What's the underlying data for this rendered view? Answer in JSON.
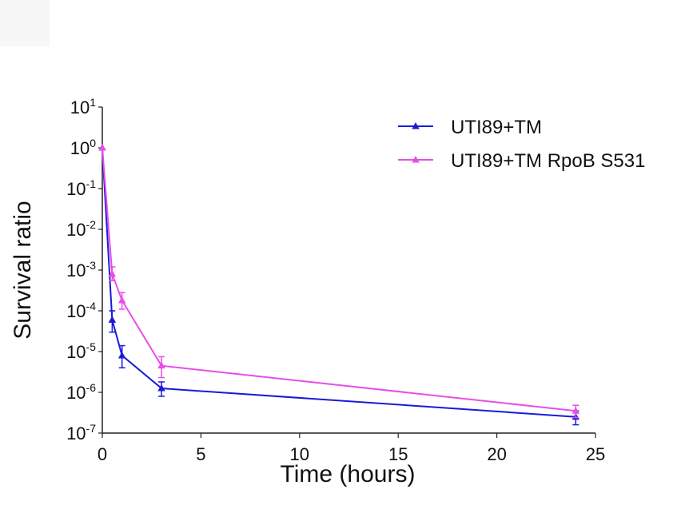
{
  "chart_data": {
    "type": "line",
    "xlabel": "Time (hours)",
    "ylabel": "Survival ratio",
    "xlim": [
      0,
      25
    ],
    "x_ticks": [
      "0",
      "5",
      "10",
      "15",
      "20",
      "25"
    ],
    "y_scale": "log",
    "ylim": [
      1e-07,
      10
    ],
    "y_tick_base": "10",
    "y_tick_exponents": [
      "1",
      "0",
      "-1",
      "-2",
      "-3",
      "-4",
      "-5",
      "-6",
      "-7"
    ],
    "legend_position": "top-right",
    "grid": false,
    "series": [
      {
        "name": "UTI89+TM",
        "color": "#1a1adb",
        "marker": "triangle",
        "x": [
          0,
          0.5,
          1,
          3,
          24
        ],
        "y": [
          1,
          6e-05,
          8e-06,
          1.25e-06,
          2.5e-07
        ],
        "err_low": [
          1,
          3e-05,
          4e-06,
          8e-07,
          1.6e-07
        ],
        "err_high": [
          1,
          0.0001,
          1.4e-05,
          1.8e-06,
          3.5e-07
        ]
      },
      {
        "name": "UTI89+TM RpoB S531",
        "color": "#e84de8",
        "marker": "triangle",
        "x": [
          0,
          0.5,
          1,
          3,
          24
        ],
        "y": [
          1,
          0.0008,
          0.00018,
          4.5e-06,
          3.5e-07
        ],
        "err_low": [
          1,
          0.00055,
          0.00011,
          2.3e-06,
          2.4e-07
        ],
        "err_high": [
          1,
          0.0012,
          0.00028,
          7.5e-06,
          4.8e-07
        ]
      }
    ]
  }
}
